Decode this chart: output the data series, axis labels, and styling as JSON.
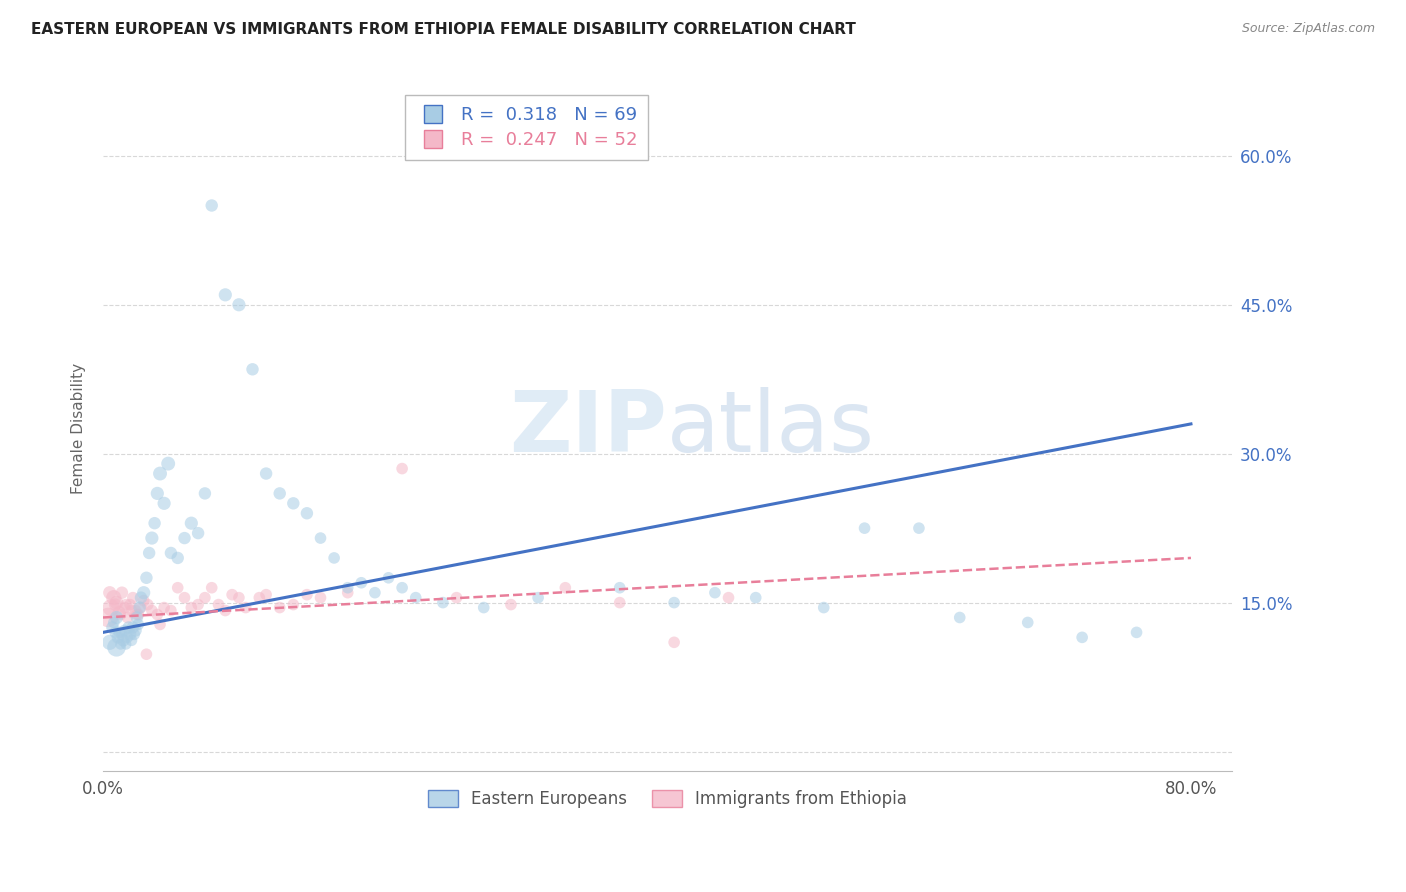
{
  "title": "EASTERN EUROPEAN VS IMMIGRANTS FROM ETHIOPIA FEMALE DISABILITY CORRELATION CHART",
  "source": "Source: ZipAtlas.com",
  "ylabel": "Female Disability",
  "ytick_labels": [
    "",
    "15.0%",
    "30.0%",
    "45.0%",
    "60.0%"
  ],
  "ytick_vals": [
    0.0,
    0.15,
    0.3,
    0.45,
    0.6
  ],
  "xtick_labels": [
    "0.0%",
    "",
    "",
    "",
    "80.0%"
  ],
  "xtick_vals": [
    0.0,
    0.2,
    0.4,
    0.6,
    0.8
  ],
  "xlim": [
    0.0,
    0.83
  ],
  "ylim": [
    -0.02,
    0.67
  ],
  "blue_R": "0.318",
  "blue_N": "69",
  "pink_R": "0.247",
  "pink_N": "52",
  "watermark": "ZIPatlas",
  "blue_color": "#a8cce4",
  "pink_color": "#f4b8c8",
  "line_blue": "#4472c4",
  "line_pink": "#e87e9a",
  "grid_color": "#d8d8d8",
  "background_color": "#ffffff",
  "blue_scatter_x": [
    0.005,
    0.007,
    0.008,
    0.009,
    0.01,
    0.01,
    0.011,
    0.012,
    0.013,
    0.014,
    0.015,
    0.016,
    0.017,
    0.018,
    0.019,
    0.02,
    0.021,
    0.022,
    0.023,
    0.024,
    0.025,
    0.026,
    0.027,
    0.028,
    0.03,
    0.032,
    0.034,
    0.036,
    0.038,
    0.04,
    0.042,
    0.045,
    0.048,
    0.05,
    0.055,
    0.06,
    0.065,
    0.07,
    0.075,
    0.08,
    0.09,
    0.1,
    0.11,
    0.12,
    0.13,
    0.14,
    0.15,
    0.16,
    0.17,
    0.18,
    0.19,
    0.2,
    0.21,
    0.22,
    0.23,
    0.25,
    0.28,
    0.32,
    0.38,
    0.42,
    0.45,
    0.48,
    0.53,
    0.56,
    0.6,
    0.63,
    0.68,
    0.72,
    0.76
  ],
  "blue_scatter_y": [
    0.11,
    0.125,
    0.13,
    0.12,
    0.105,
    0.135,
    0.115,
    0.12,
    0.108,
    0.118,
    0.112,
    0.122,
    0.108,
    0.115,
    0.125,
    0.118,
    0.112,
    0.125,
    0.118,
    0.122,
    0.135,
    0.128,
    0.145,
    0.155,
    0.16,
    0.175,
    0.2,
    0.215,
    0.23,
    0.26,
    0.28,
    0.25,
    0.29,
    0.2,
    0.195,
    0.215,
    0.23,
    0.22,
    0.26,
    0.55,
    0.46,
    0.45,
    0.385,
    0.28,
    0.26,
    0.25,
    0.24,
    0.215,
    0.195,
    0.165,
    0.17,
    0.16,
    0.175,
    0.165,
    0.155,
    0.15,
    0.145,
    0.155,
    0.165,
    0.15,
    0.16,
    0.155,
    0.145,
    0.225,
    0.225,
    0.135,
    0.13,
    0.115,
    0.12
  ],
  "blue_scatter_sizes": [
    120,
    80,
    70,
    70,
    180,
    90,
    80,
    70,
    60,
    70,
    80,
    70,
    60,
    70,
    80,
    80,
    70,
    80,
    70,
    80,
    80,
    70,
    80,
    80,
    90,
    80,
    80,
    90,
    80,
    90,
    100,
    90,
    100,
    80,
    80,
    80,
    90,
    80,
    80,
    80,
    90,
    90,
    80,
    80,
    80,
    80,
    80,
    70,
    70,
    70,
    70,
    70,
    70,
    70,
    70,
    70,
    70,
    70,
    70,
    70,
    70,
    70,
    70,
    70,
    70,
    70,
    70,
    70,
    70
  ],
  "pink_scatter_x": [
    0.004,
    0.006,
    0.008,
    0.01,
    0.012,
    0.014,
    0.016,
    0.018,
    0.02,
    0.022,
    0.024,
    0.026,
    0.028,
    0.03,
    0.033,
    0.036,
    0.04,
    0.045,
    0.05,
    0.06,
    0.07,
    0.08,
    0.09,
    0.1,
    0.12,
    0.14,
    0.16,
    0.18,
    0.22,
    0.26,
    0.3,
    0.34,
    0.38,
    0.42,
    0.46,
    0.005,
    0.009,
    0.013,
    0.017,
    0.021,
    0.025,
    0.032,
    0.042,
    0.055,
    0.065,
    0.075,
    0.085,
    0.095,
    0.105,
    0.115,
    0.13,
    0.15
  ],
  "pink_scatter_y": [
    0.135,
    0.145,
    0.155,
    0.15,
    0.14,
    0.16,
    0.145,
    0.135,
    0.148,
    0.155,
    0.142,
    0.138,
    0.145,
    0.152,
    0.148,
    0.142,
    0.138,
    0.145,
    0.142,
    0.155,
    0.148,
    0.165,
    0.142,
    0.155,
    0.158,
    0.148,
    0.155,
    0.16,
    0.285,
    0.155,
    0.148,
    0.165,
    0.15,
    0.11,
    0.155,
    0.16,
    0.148,
    0.138,
    0.148,
    0.142,
    0.138,
    0.098,
    0.128,
    0.165,
    0.145,
    0.155,
    0.148,
    0.158,
    0.145,
    0.155,
    0.145,
    0.158
  ],
  "pink_scatter_sizes": [
    200,
    150,
    120,
    100,
    90,
    80,
    70,
    70,
    70,
    70,
    70,
    70,
    70,
    70,
    70,
    70,
    70,
    70,
    70,
    70,
    70,
    70,
    70,
    70,
    70,
    70,
    70,
    70,
    70,
    70,
    70,
    70,
    70,
    70,
    70,
    90,
    80,
    70,
    70,
    70,
    70,
    70,
    70,
    70,
    70,
    70,
    70,
    70,
    70,
    70,
    70,
    70
  ],
  "blue_trendline_x": [
    0.0,
    0.8
  ],
  "blue_trendline_y": [
    0.12,
    0.33
  ],
  "pink_trendline_x": [
    0.0,
    0.8
  ],
  "pink_trendline_y": [
    0.135,
    0.195
  ]
}
